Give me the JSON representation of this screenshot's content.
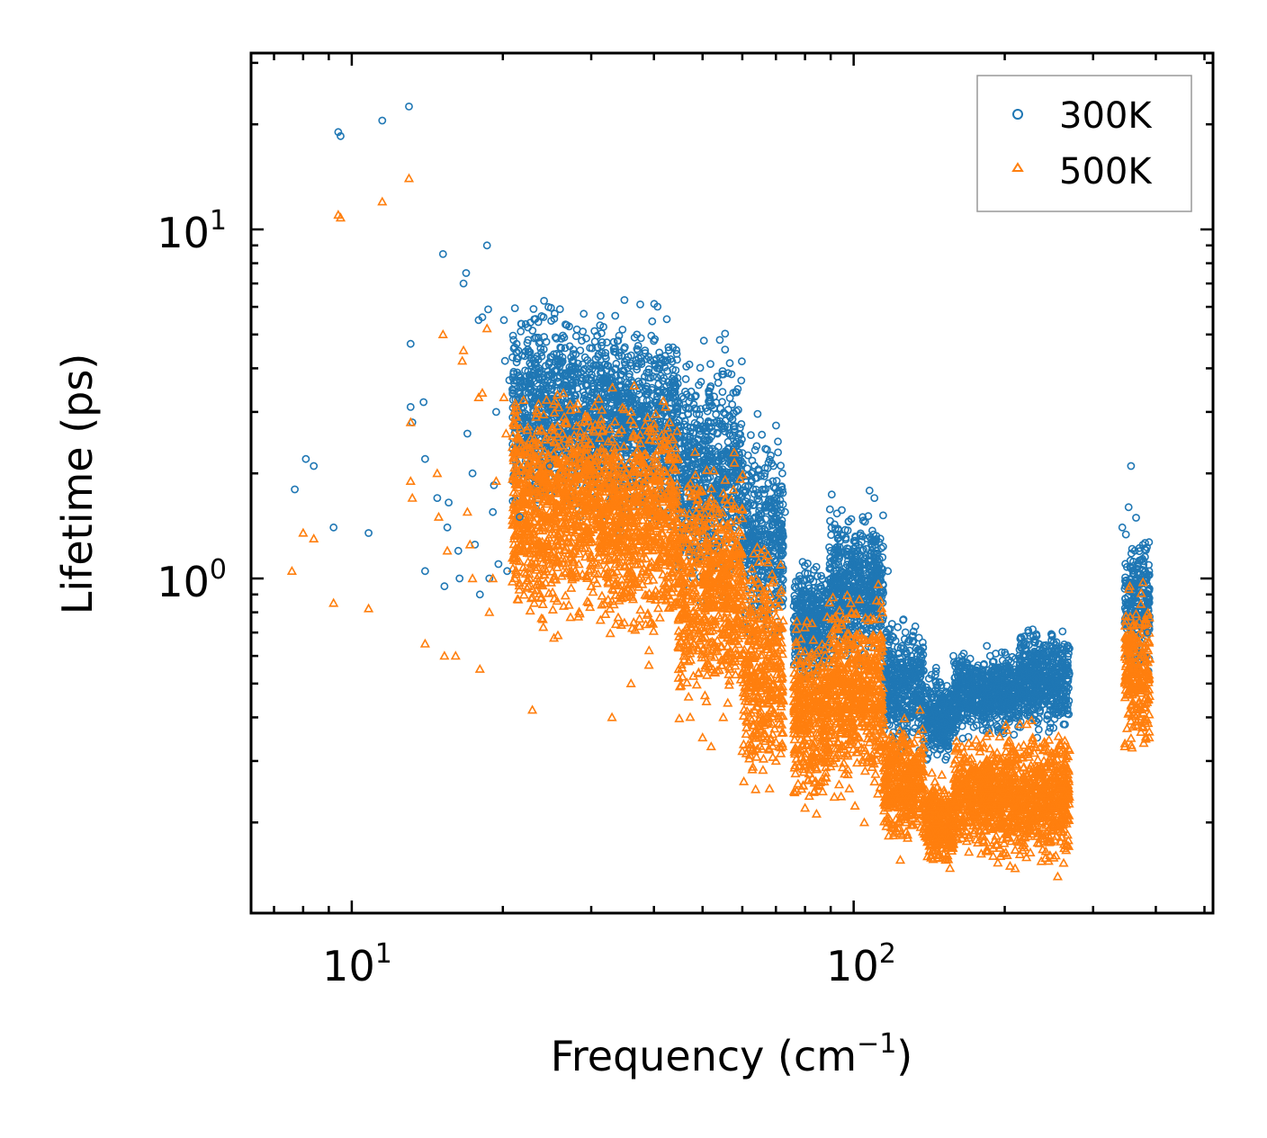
{
  "chart_data": {
    "type": "scatter",
    "title": "",
    "xlabel": "Frequency (cm",
    "xlabel_sup": "−1",
    "xlabel_end": ")",
    "ylabel": "Lifetime (ps)",
    "xscale": "log",
    "yscale": "log",
    "xlim": [
      6.3,
      520
    ],
    "ylim": [
      0.11,
      32
    ],
    "x_tick_labels": [
      {
        "value": 10,
        "base": "10",
        "exp": "1"
      },
      {
        "value": 100,
        "base": "10",
        "exp": "2"
      }
    ],
    "y_tick_labels": [
      {
        "value": 1,
        "base": "10",
        "exp": "0"
      },
      {
        "value": 10,
        "base": "10",
        "exp": "1"
      }
    ],
    "legend_position": "top-right",
    "series": [
      {
        "name": "300K",
        "marker": "circle",
        "color": "#1f77b4",
        "points": [
          [
            7.7,
            1.8
          ],
          [
            8.1,
            2.2
          ],
          [
            8.4,
            2.1
          ],
          [
            9.2,
            1.4
          ],
          [
            9.4,
            19.0
          ],
          [
            9.5,
            18.5
          ],
          [
            10.8,
            1.35
          ],
          [
            11.5,
            20.5
          ],
          [
            13.0,
            22.5
          ],
          [
            13.1,
            4.7
          ],
          [
            13.1,
            3.1
          ],
          [
            13.2,
            2.8
          ],
          [
            13.9,
            3.2
          ],
          [
            14.0,
            2.2
          ],
          [
            14.0,
            1.05
          ],
          [
            14.8,
            1.7
          ],
          [
            15.2,
            8.5
          ],
          [
            15.3,
            0.95
          ],
          [
            15.5,
            1.4
          ],
          [
            15.6,
            1.65
          ],
          [
            16.3,
            1.2
          ],
          [
            16.4,
            1.0
          ],
          [
            16.7,
            7.0
          ],
          [
            16.9,
            7.5
          ],
          [
            17.0,
            2.6
          ],
          [
            17.4,
            2.0
          ],
          [
            17.6,
            1.25
          ],
          [
            17.9,
            5.5
          ],
          [
            18.0,
            0.9
          ],
          [
            18.2,
            5.6
          ],
          [
            18.6,
            9.0
          ],
          [
            18.7,
            5.9
          ],
          [
            18.8,
            1.0
          ],
          [
            19.1,
            1.55
          ],
          [
            19.2,
            1.85
          ],
          [
            19.4,
            3.0
          ],
          [
            19.6,
            1.1
          ],
          [
            20.1,
            5.5
          ],
          [
            20.2,
            4.2
          ],
          [
            20.4,
            1.05
          ],
          [
            20.6,
            3.7
          ],
          [
            20.9,
            4.3
          ],
          [
            21.3,
            4.7
          ],
          [
            21.6,
            1.5
          ],
          [
            22.5,
            3.5
          ],
          [
            22.9,
            2.8
          ],
          [
            23.3,
            4.9
          ],
          [
            24.8,
            2.1
          ],
          [
            26.3,
            4.3
          ],
          [
            26.5,
            4.9
          ],
          [
            28.3,
            2.9
          ],
          [
            35.0,
            4.6
          ],
          [
            36.6,
            4.9
          ],
          [
            38.4,
            4.5
          ],
          [
            40.6,
            4.0
          ],
          [
            43.8,
            3.8
          ],
          [
            50.3,
            4.8
          ],
          [
            69.0,
            1.9
          ],
          [
            69.2,
            2.1
          ],
          [
            73.0,
            1.55
          ],
          [
            82.0,
            1.0
          ],
          [
            90.0,
            1.2
          ],
          [
            93.0,
            1.3
          ],
          [
            99.0,
            1.1
          ],
          [
            104.0,
            1.2
          ],
          [
            110.0,
            1.7
          ],
          [
            113.0,
            1.3
          ],
          [
            117.0,
            1.05
          ],
          [
            158.0,
            0.6
          ],
          [
            171.0,
            0.55
          ],
          [
            187.0,
            0.6
          ],
          [
            218.0,
            0.6
          ],
          [
            223.0,
            0.7
          ],
          [
            357.0,
            2.1
          ],
          [
            353.0,
            1.6
          ],
          [
            343.0,
            1.4
          ],
          [
            385.0,
            0.7
          ]
        ]
      },
      {
        "name": "500K",
        "marker": "triangle",
        "color": "#ff7f0e",
        "points": [
          [
            7.6,
            1.05
          ],
          [
            8.0,
            1.35
          ],
          [
            8.4,
            1.3
          ],
          [
            9.2,
            0.85
          ],
          [
            9.4,
            11.0
          ],
          [
            9.5,
            10.8
          ],
          [
            10.8,
            0.82
          ],
          [
            11.5,
            12.0
          ],
          [
            13.0,
            14.0
          ],
          [
            13.1,
            2.8
          ],
          [
            13.1,
            1.9
          ],
          [
            13.2,
            1.7
          ],
          [
            14.0,
            0.65
          ],
          [
            14.8,
            2.0
          ],
          [
            14.9,
            1.5
          ],
          [
            15.2,
            5.0
          ],
          [
            15.3,
            0.6
          ],
          [
            15.5,
            1.2
          ],
          [
            16.1,
            0.6
          ],
          [
            16.6,
            4.2
          ],
          [
            16.7,
            4.5
          ],
          [
            17.0,
            1.55
          ],
          [
            17.2,
            1.25
          ],
          [
            17.4,
            1.0
          ],
          [
            17.9,
            3.3
          ],
          [
            18.0,
            0.55
          ],
          [
            18.2,
            3.4
          ],
          [
            18.6,
            5.2
          ],
          [
            18.8,
            0.8
          ],
          [
            19.1,
            1.0
          ],
          [
            19.4,
            1.9
          ],
          [
            20.1,
            3.3
          ],
          [
            20.3,
            2.6
          ],
          [
            21.0,
            2.3
          ],
          [
            21.3,
            2.9
          ],
          [
            22.5,
            2.1
          ],
          [
            22.9,
            0.42
          ],
          [
            23.3,
            2.9
          ],
          [
            24.8,
            1.4
          ],
          [
            26.3,
            2.6
          ],
          [
            26.5,
            2.9
          ],
          [
            33.0,
            0.4
          ],
          [
            36.0,
            0.5
          ],
          [
            43.0,
            2.8
          ],
          [
            48.3,
            2.3
          ],
          [
            50.0,
            0.35
          ],
          [
            52.0,
            0.33
          ],
          [
            55.0,
            0.4
          ],
          [
            60.0,
            0.32
          ],
          [
            68.0,
            0.25
          ],
          [
            70.0,
            0.3
          ],
          [
            80.0,
            0.22
          ],
          [
            90.0,
            0.3
          ],
          [
            98.0,
            0.25
          ],
          [
            105.0,
            0.2
          ],
          [
            127.0,
            0.2
          ],
          [
            150.0,
            0.18
          ],
          [
            165.0,
            0.2
          ],
          [
            196.0,
            0.16
          ],
          [
            205.0,
            0.15
          ],
          [
            230.0,
            0.22
          ],
          [
            240.0,
            0.18
          ],
          [
            255.0,
            0.14
          ],
          [
            347.0,
            0.33
          ],
          [
            355.0,
            0.95
          ],
          [
            388.0,
            0.35
          ]
        ]
      }
    ]
  }
}
